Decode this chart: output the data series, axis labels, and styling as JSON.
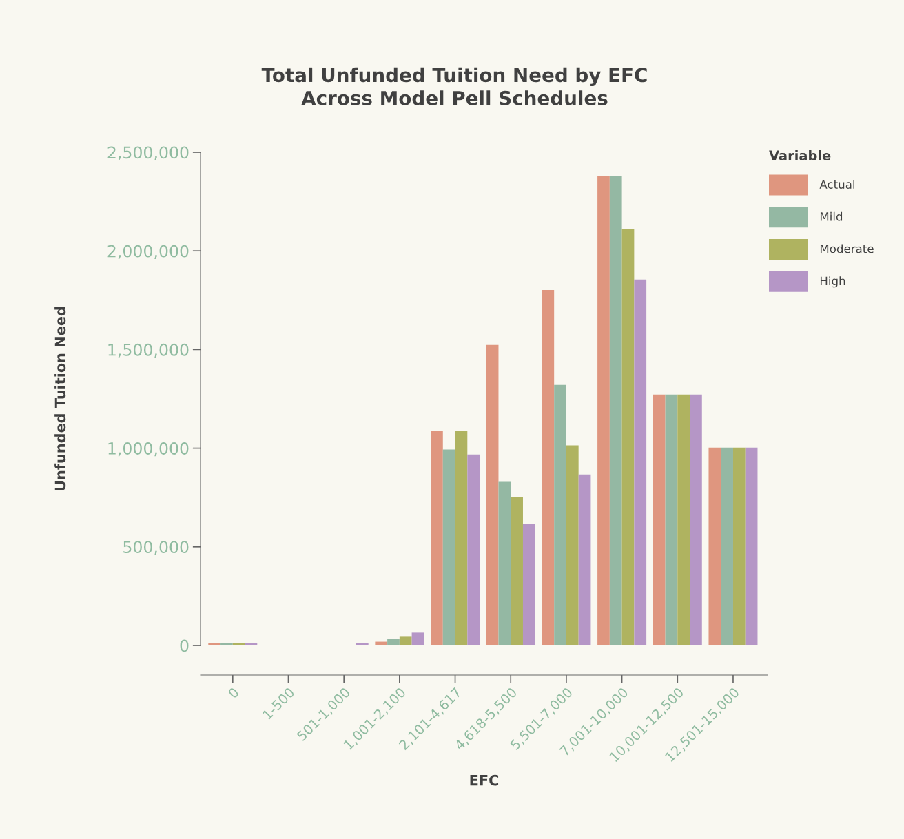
{
  "chart_data": {
    "type": "bar",
    "title": "Total Unfunded Tuition Need by EFC\nAcross Model Pell Schedules",
    "xlabel": "EFC",
    "ylabel": "Unfunded Tuition Need",
    "legend_title": "Variable",
    "categories": [
      "0",
      "1-500",
      "501-1,000",
      "1,001-2,100",
      "2,101-4,617",
      "4,618-5,500",
      "5,501-7,000",
      "7,001-10,000",
      "10,001-12,500",
      "12,501-15,000"
    ],
    "series": [
      {
        "name": "Actual",
        "color": "#df967f",
        "values": [
          12000,
          0,
          0,
          19000,
          1087000,
          1523000,
          1802000,
          2378000,
          1272000,
          1003000
        ]
      },
      {
        "name": "Mild",
        "color": "#94b8a3",
        "values": [
          12000,
          0,
          0,
          33000,
          993000,
          829000,
          1321000,
          2378000,
          1272000,
          1003000
        ]
      },
      {
        "name": "Moderate",
        "color": "#afb360",
        "values": [
          12000,
          0,
          0,
          44000,
          1087000,
          752000,
          1014000,
          2109000,
          1272000,
          1003000
        ]
      },
      {
        "name": "High",
        "color": "#b596c6",
        "values": [
          12000,
          0,
          12000,
          65000,
          968000,
          616000,
          867000,
          1855000,
          1272000,
          1003000
        ]
      }
    ],
    "ylim": [
      0,
      2500000
    ],
    "yticks": [
      {
        "value": 0,
        "label": "0"
      },
      {
        "value": 500000,
        "label": "500,000"
      },
      {
        "value": 1000000,
        "label": "1,000,000"
      },
      {
        "value": 1500000,
        "label": "1,500,000"
      },
      {
        "value": 2000000,
        "label": "2,000,000"
      },
      {
        "value": 2500000,
        "label": "2,500,000"
      }
    ],
    "grid": false,
    "legend": "right"
  }
}
